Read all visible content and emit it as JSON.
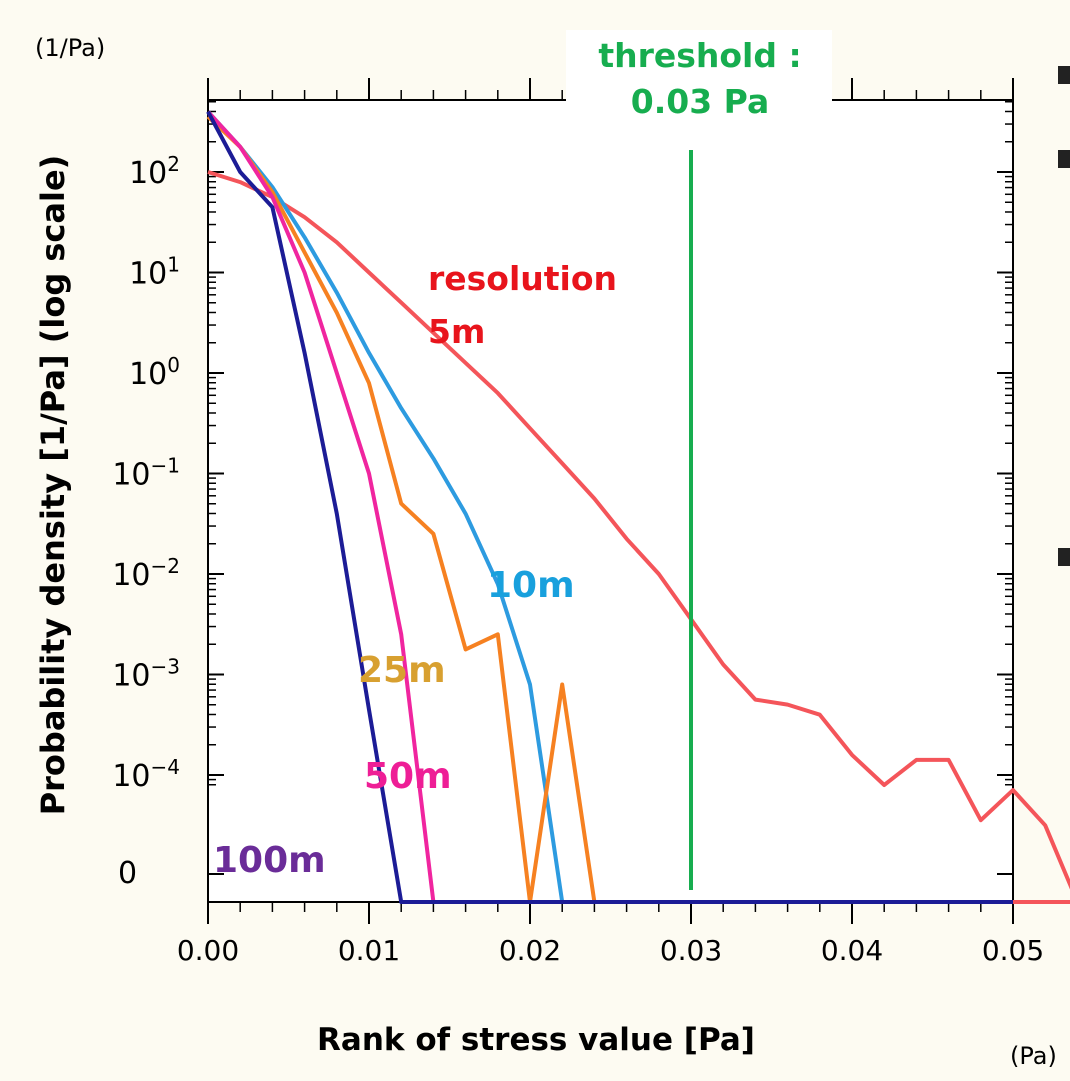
{
  "chart_data": {
    "type": "line",
    "title": "",
    "xlabel": "Rank of stress value [Pa]",
    "ylabel": "Probability density [1/Pa] (log scale)",
    "x_unit": "(Pa)",
    "y_unit": "(1/Pa)",
    "xlim": [
      0.0,
      0.05
    ],
    "ylim_log10": [
      -5.3,
      2.8
    ],
    "x_ticks": [
      "0.00",
      "0.01",
      "0.02",
      "0.03",
      "0.04",
      "0.05"
    ],
    "y_ticks": [
      {
        "mant": "10",
        "exp": "2",
        "value": 2
      },
      {
        "mant": "10",
        "exp": "1",
        "value": 1
      },
      {
        "mant": "10",
        "exp": "0",
        "value": 0
      },
      {
        "mant": "10",
        "exp": "−1",
        "value": -1
      },
      {
        "mant": "10",
        "exp": "−2",
        "value": -2
      },
      {
        "mant": "10",
        "exp": "−3",
        "value": -3
      },
      {
        "mant": "10",
        "exp": "−4",
        "value": -4
      }
    ],
    "zero_label": "0",
    "series": [
      {
        "name": "100m",
        "color": "#1c1c96",
        "log10_y": [
          2.6,
          2.0,
          1.65,
          0.2,
          -1.4,
          -3.35,
          "zero"
        ]
      },
      {
        "name": "50m",
        "color": "#f0259f",
        "log10_y": [
          2.6,
          2.25,
          1.75,
          1.0,
          0.0,
          -1.0,
          -2.6,
          "zero"
        ]
      },
      {
        "name": "25m",
        "color": "#f68121",
        "log10_y": [
          2.55,
          2.25,
          1.8,
          1.2,
          0.6,
          -0.1,
          -1.3,
          -1.6,
          -2.75,
          -2.6,
          "zero",
          -3.1,
          "zero"
        ]
      },
      {
        "name": "10m",
        "color": "#2d9be0",
        "log10_y": [
          2.6,
          2.25,
          1.85,
          1.35,
          0.8,
          0.2,
          -0.35,
          -0.85,
          -1.4,
          -2.1,
          -3.1,
          "zero"
        ]
      },
      {
        "name": "resolution 5m",
        "color": "#f4555a",
        "log10_y": [
          2.0,
          1.9,
          1.75,
          1.55,
          1.3,
          1.0,
          0.7,
          0.4,
          0.1,
          -0.2,
          -0.55,
          -0.9,
          -1.25,
          -1.65,
          -2.0,
          -2.45,
          -2.9,
          -3.25,
          -3.3,
          -3.4,
          -3.8,
          -4.1,
          -3.85,
          -3.85,
          -4.45,
          -4.15,
          -4.5,
          "zero"
        ]
      }
    ],
    "series_labels": [
      {
        "name": "resolution",
        "color": "#e8141c"
      },
      {
        "name": "5m",
        "color": "#e8141c"
      },
      {
        "name": "10m",
        "color": "#18a0dd"
      },
      {
        "name": "25m",
        "color": "#d8a030"
      },
      {
        "name": "50m",
        "color": "#ee1e96"
      },
      {
        "name": "100m",
        "color": "#6a2c98"
      }
    ],
    "threshold": {
      "x": 0.03,
      "label_line1": "threshold :",
      "label_line2": "0.03 Pa",
      "color": "#17ad4f"
    },
    "grid": false,
    "log_scale_y": true
  }
}
